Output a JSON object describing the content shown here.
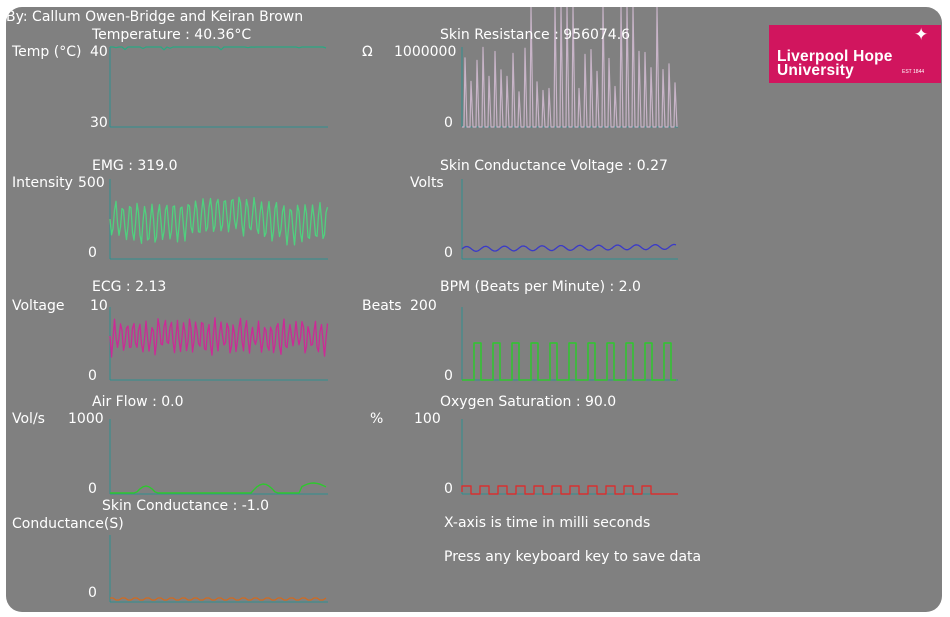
{
  "credits": "By: Callum Owen-Bridge and Keiran Brown",
  "logo": {
    "line1": "Liverpool Hope",
    "line2": "University",
    "est": "EST 1844"
  },
  "footer": {
    "xaxis_note": "X-axis is time in milli seconds",
    "save_hint": "Press any keyboard key to save data"
  },
  "plots": {
    "temperature": {
      "title": "Temperature : 40.36°C",
      "unit": "Temp (°C)",
      "ymax": "40",
      "ymin": "30",
      "color": "#2aa882"
    },
    "skin_resistance": {
      "title": "Skin Resistance : 956074.6",
      "unit": "Ω",
      "ymax": "1000000",
      "ymin": "0",
      "color": "#c8b4c8"
    },
    "emg": {
      "title": "EMG : 319.0",
      "unit": "Intensity",
      "ymax": "500",
      "ymin": "0",
      "color": "#4fd17e"
    },
    "sc_voltage": {
      "title": "Skin Conductance Voltage : 0.27",
      "unit": "Volts",
      "ymin": "0",
      "color": "#3a3ac8"
    },
    "ecg": {
      "title": "ECG : 2.13",
      "unit": "Voltage",
      "ymax": "10",
      "ymin": "0",
      "color": "#cc2a96"
    },
    "bpm": {
      "title": "BPM (Beats per Minute) : 2.0",
      "unit": "Beats",
      "ymax": "200",
      "ymin": "0",
      "color": "#2ec82e"
    },
    "airflow": {
      "title": "Air Flow : 0.0",
      "unit": "Vol/s",
      "ymax": "1000",
      "ymin": "0",
      "color": "#2ec82e"
    },
    "oxygen": {
      "title": "Oxygen Saturation : 90.0",
      "unit": "%",
      "ymax": "100",
      "ymin": "0",
      "color": "#d83030"
    },
    "skin_conductance": {
      "title": "Skin Conductance : -1.0",
      "unit": "Conductance(S)",
      "ymin": "0",
      "color": "#d2691e"
    }
  }
}
